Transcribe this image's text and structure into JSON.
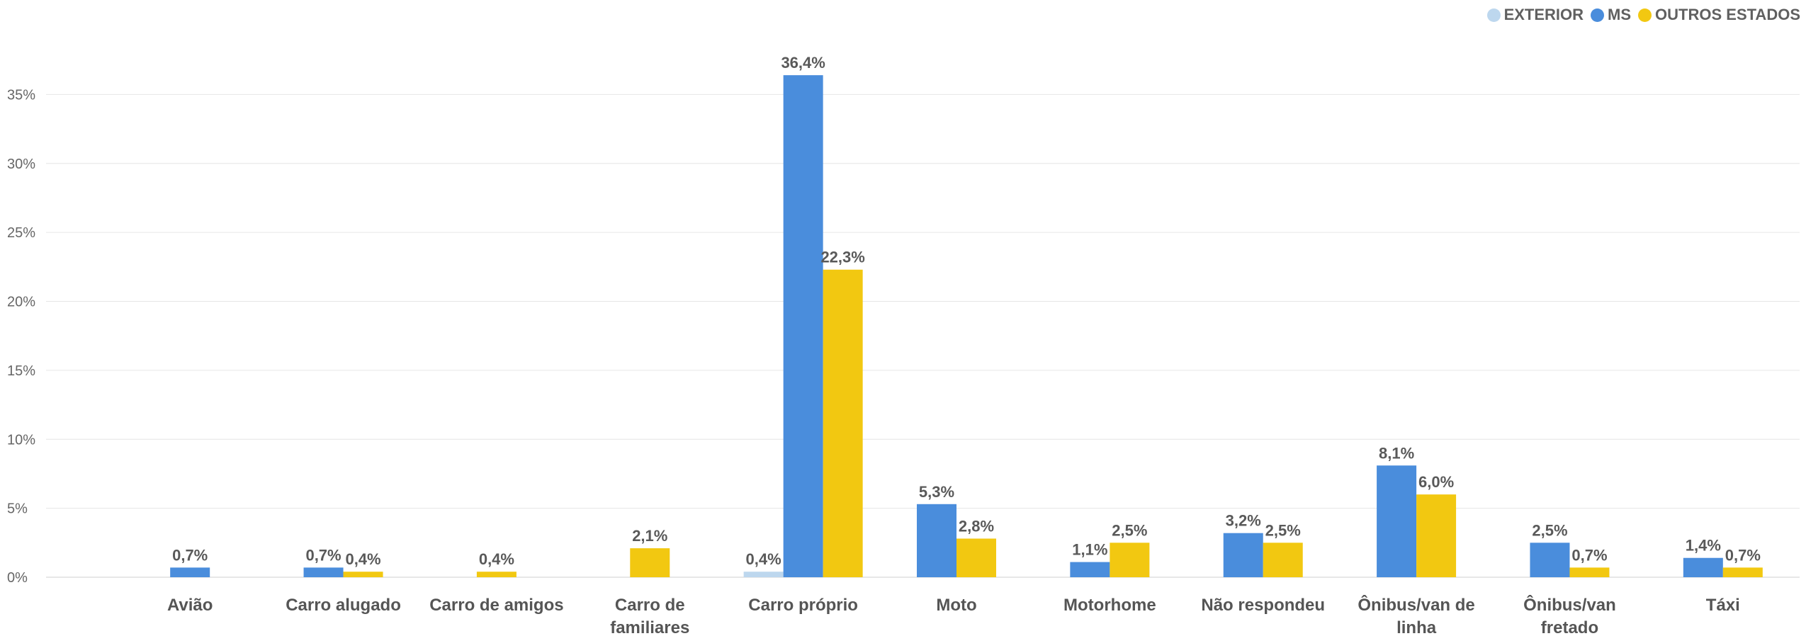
{
  "chart_data": {
    "type": "bar",
    "categories": [
      "Avião",
      "Carro alugado",
      "Carro de amigos",
      "Carro de familiares",
      "Carro próprio",
      "Moto",
      "Motorhome",
      "Não respondeu",
      "Ônibus/van de linha",
      "Ônibus/van fretado",
      "Táxi"
    ],
    "category_lines": [
      [
        "Avião"
      ],
      [
        "Carro alugado"
      ],
      [
        "Carro de amigos"
      ],
      [
        "Carro de",
        "familiares"
      ],
      [
        "Carro próprio"
      ],
      [
        "Moto"
      ],
      [
        "Motorhome"
      ],
      [
        "Não respondeu"
      ],
      [
        "Ônibus/van de",
        "linha"
      ],
      [
        "Ônibus/van",
        "fretado"
      ],
      [
        "Táxi"
      ]
    ],
    "series": [
      {
        "name": "EXTERIOR",
        "color": "#bdd7ee",
        "values": [
          null,
          null,
          null,
          null,
          0.4,
          null,
          null,
          null,
          null,
          null,
          null
        ],
        "labels": [
          "",
          "",
          "",
          "",
          "0,4%",
          "",
          "",
          "",
          "",
          "",
          ""
        ]
      },
      {
        "name": "MS",
        "color": "#4a8ddc",
        "values": [
          0.7,
          0.7,
          null,
          null,
          36.4,
          5.3,
          1.1,
          3.2,
          8.1,
          2.5,
          1.4
        ],
        "labels": [
          "0,7%",
          "0,7%",
          "",
          "",
          "36,4%",
          "5,3%",
          "1,1%",
          "3,2%",
          "8,1%",
          "2,5%",
          "1,4%"
        ]
      },
      {
        "name": "OUTROS ESTADOS",
        "color": "#f2c811",
        "values": [
          null,
          0.4,
          0.4,
          2.1,
          22.3,
          2.8,
          2.5,
          2.5,
          6.0,
          0.7,
          0.7
        ],
        "labels": [
          "",
          "0,4%",
          "0,4%",
          "2,1%",
          "22,3%",
          "2,8%",
          "2,5%",
          "2,5%",
          "6,0%",
          "0,7%",
          "0,7%"
        ]
      }
    ],
    "ylim": [
      0,
      38
    ],
    "yticks": [
      0,
      5,
      10,
      15,
      20,
      25,
      30,
      35
    ],
    "ytick_labels": [
      "0%",
      "5%",
      "10%",
      "15%",
      "20%",
      "25%",
      "30%",
      "35%"
    ],
    "grid": true,
    "legend": "top-right"
  }
}
